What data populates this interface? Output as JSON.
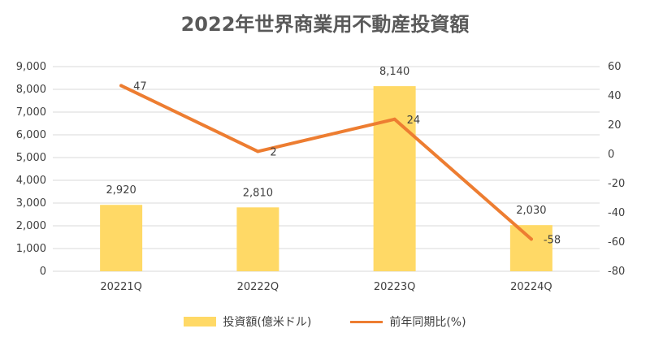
{
  "chart_data": {
    "type": "bar",
    "title": "2022年世界商業用不動産投資額",
    "categories": [
      "20221Q",
      "20222Q",
      "20223Q",
      "20224Q"
    ],
    "y_left": {
      "ylim": [
        0,
        9000
      ],
      "ticks": [
        "0",
        "1,000",
        "2,000",
        "3,000",
        "4,000",
        "5,000",
        "6,000",
        "7,000",
        "8,000",
        "9,000"
      ]
    },
    "y_right": {
      "ylim": [
        -80,
        60
      ],
      "ticks": [
        "-80",
        "-60",
        "-40",
        "-20",
        "0",
        "20",
        "40",
        "60"
      ]
    },
    "series": [
      {
        "name": "投資額(億米ドル)",
        "type": "bar",
        "axis": "left",
        "values": [
          2920,
          2810,
          8140,
          2030
        ],
        "labels": [
          "2,920",
          "2,810",
          "8,140",
          "2,030"
        ],
        "color": "#FFD966"
      },
      {
        "name": "前年同期比(%)",
        "type": "line",
        "axis": "right",
        "values": [
          47,
          2,
          24,
          -58
        ],
        "labels": [
          "47",
          "2",
          "24",
          "-58"
        ],
        "color": "#ED7D31"
      }
    ],
    "grid": true,
    "legend": "bottom"
  }
}
